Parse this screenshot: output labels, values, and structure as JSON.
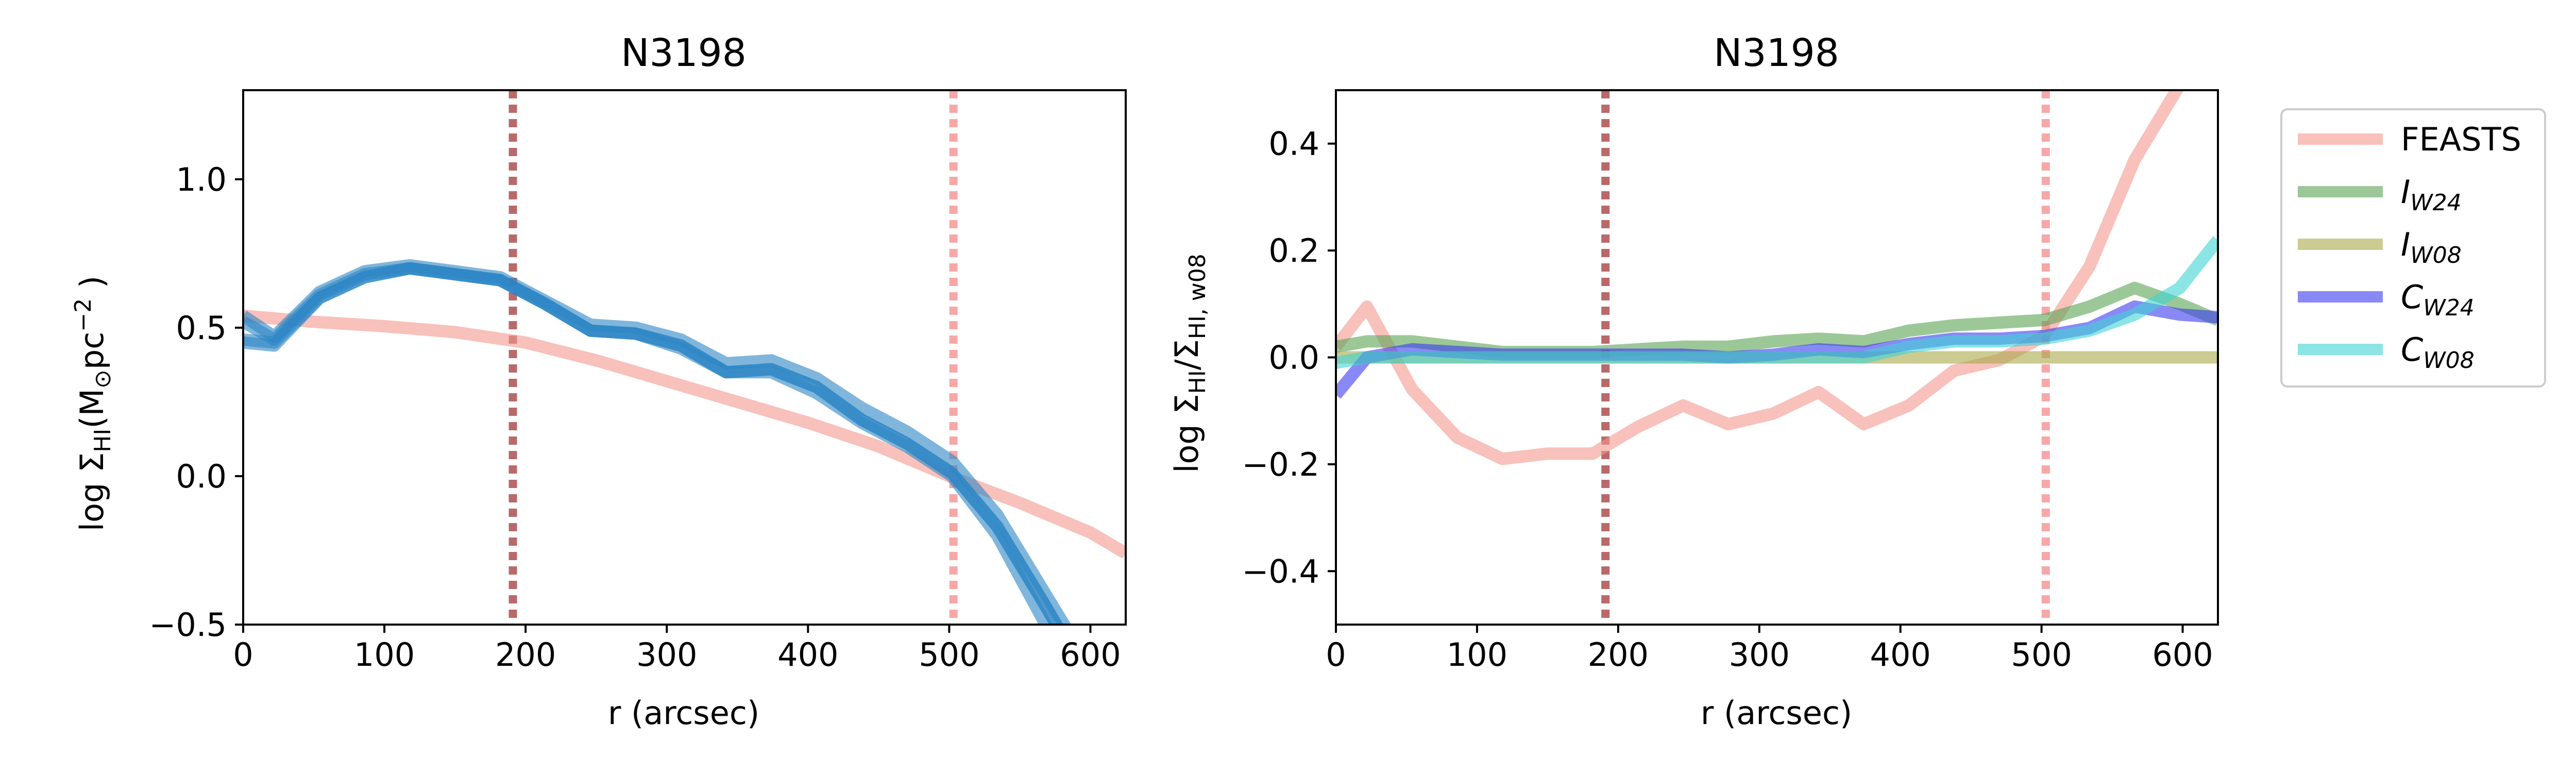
{
  "colors": {
    "FEASTS": "#f4978e",
    "I_W24": "#5aa454",
    "I_W08": "#a8a84a",
    "C_W24": "#3b3bf0",
    "C_W08": "#3fd3d3",
    "vline_dark": "#b86a6a",
    "vline_light": "#f6a8a8",
    "profile_core": "#2b86c4"
  },
  "legend": {
    "entries": [
      {
        "key": "FEASTS",
        "text": "FEASTS"
      },
      {
        "key": "I_W24",
        "base": "I",
        "sub": "W24"
      },
      {
        "key": "I_W08",
        "base": "I",
        "sub": "W08"
      },
      {
        "key": "C_W24",
        "base": "C",
        "sub": "W24"
      },
      {
        "key": "C_W08",
        "base": "C",
        "sub": "W08"
      }
    ]
  },
  "chart_data": [
    {
      "type": "line",
      "title": "N3198",
      "xlabel": "r (arcsec)",
      "ylabel": {
        "pre": "log Σ",
        "sub": "HI",
        "mid": "(M",
        "sun": "⊙",
        "post": "pc",
        "sup": "−2",
        "end": " )"
      },
      "xlim": [
        0,
        625
      ],
      "ylim": [
        -0.5,
        1.3
      ],
      "xticks": [
        0,
        100,
        200,
        300,
        400,
        500,
        600
      ],
      "xticklabels": [
        "0",
        "100",
        "200",
        "300",
        "400",
        "500",
        "600"
      ],
      "yticks": [
        -0.5,
        0.0,
        0.5,
        1.0
      ],
      "yticklabels": [
        "−0.5",
        "0.0",
        "0.5",
        "1.0"
      ],
      "vlines": [
        {
          "x": 191,
          "style": "dark"
        },
        {
          "x": 503,
          "style": "light"
        }
      ],
      "series": [
        {
          "key": "FEASTS",
          "x": [
            0,
            50,
            100,
            150,
            200,
            250,
            300,
            350,
            400,
            450,
            500,
            550,
            600,
            625
          ],
          "y": [
            0.54,
            0.52,
            0.505,
            0.485,
            0.45,
            0.39,
            0.32,
            0.25,
            0.18,
            0.1,
            0.0,
            -0.09,
            -0.19,
            -0.26
          ]
        },
        {
          "key": "I_W24",
          "x": [
            0,
            22,
            54,
            86,
            118,
            150,
            182,
            214,
            246,
            278,
            310,
            342,
            374,
            406,
            438,
            470,
            502,
            534,
            566,
            598
          ],
          "y": [
            0.54,
            0.47,
            0.62,
            0.69,
            0.71,
            0.69,
            0.67,
            0.59,
            0.51,
            0.5,
            0.46,
            0.38,
            0.39,
            0.33,
            0.23,
            0.15,
            0.05,
            -0.13,
            -0.38,
            -0.63
          ]
        },
        {
          "key": "I_W08",
          "x": [
            0,
            22,
            54,
            86,
            118,
            150,
            182,
            214,
            246,
            278,
            310,
            342,
            374,
            406,
            438,
            470,
            502,
            534,
            566,
            598
          ],
          "y": [
            0.52,
            0.46,
            0.61,
            0.68,
            0.7,
            0.68,
            0.66,
            0.58,
            0.49,
            0.48,
            0.43,
            0.35,
            0.35,
            0.28,
            0.18,
            0.1,
            0.0,
            -0.2,
            -0.48,
            -0.78
          ]
        },
        {
          "key": "C_W24",
          "x": [
            0,
            22,
            54,
            86,
            118,
            150,
            182,
            214,
            246,
            278,
            310,
            342,
            374,
            406,
            438,
            470,
            502,
            534,
            566,
            598
          ],
          "y": [
            0.45,
            0.44,
            0.6,
            0.67,
            0.7,
            0.68,
            0.66,
            0.58,
            0.49,
            0.48,
            0.44,
            0.35,
            0.36,
            0.3,
            0.19,
            0.11,
            0.01,
            -0.17,
            -0.42,
            -0.68
          ]
        },
        {
          "key": "C_W08",
          "x": [
            0,
            22,
            54,
            86,
            118,
            150,
            182,
            214,
            246,
            278,
            310,
            342,
            374,
            406,
            438,
            470,
            502,
            534,
            566,
            598
          ],
          "y": [
            0.46,
            0.45,
            0.6,
            0.67,
            0.7,
            0.68,
            0.66,
            0.58,
            0.49,
            0.48,
            0.44,
            0.35,
            0.36,
            0.3,
            0.19,
            0.11,
            0.01,
            -0.17,
            -0.42,
            -0.68
          ]
        }
      ]
    },
    {
      "type": "line",
      "title": "N3198",
      "xlabel": "r (arcsec)",
      "ylabel": {
        "pre": "log Σ",
        "sub": "HI",
        "mid": "/Σ",
        "sub2": "HI, w08"
      },
      "xlim": [
        0,
        625
      ],
      "ylim": [
        -0.5,
        0.5
      ],
      "xticks": [
        0,
        100,
        200,
        300,
        400,
        500,
        600
      ],
      "xticklabels": [
        "0",
        "100",
        "200",
        "300",
        "400",
        "500",
        "600"
      ],
      "yticks": [
        -0.4,
        -0.2,
        0.0,
        0.2,
        0.4
      ],
      "yticklabels": [
        "−0.4",
        "−0.2",
        "0.0",
        "0.2",
        "0.4"
      ],
      "vlines": [
        {
          "x": 191,
          "style": "dark"
        },
        {
          "x": 503,
          "style": "light"
        }
      ],
      "series": [
        {
          "key": "FEASTS",
          "x": [
            0,
            22,
            54,
            86,
            118,
            150,
            182,
            214,
            246,
            278,
            310,
            342,
            374,
            406,
            438,
            470,
            502,
            534,
            566,
            598,
            625
          ],
          "y": [
            0.02,
            0.095,
            -0.06,
            -0.15,
            -0.19,
            -0.18,
            -0.18,
            -0.13,
            -0.09,
            -0.125,
            -0.105,
            -0.065,
            -0.125,
            -0.09,
            -0.025,
            -0.005,
            0.04,
            0.17,
            0.37,
            0.51,
            0.6
          ]
        },
        {
          "key": "I_W24",
          "x": [
            0,
            22,
            54,
            86,
            118,
            150,
            182,
            214,
            246,
            278,
            310,
            342,
            374,
            406,
            438,
            470,
            502,
            534,
            566,
            598,
            625
          ],
          "y": [
            0.02,
            0.03,
            0.03,
            0.02,
            0.01,
            0.01,
            0.01,
            0.015,
            0.02,
            0.02,
            0.03,
            0.035,
            0.03,
            0.05,
            0.06,
            0.065,
            0.07,
            0.095,
            0.13,
            0.1,
            0.07
          ]
        },
        {
          "key": "I_W08",
          "x": [
            0,
            625
          ],
          "y": [
            0.0,
            0.0
          ]
        },
        {
          "key": "C_W24",
          "x": [
            0,
            22,
            54,
            86,
            118,
            150,
            182,
            214,
            246,
            278,
            310,
            342,
            374,
            406,
            438,
            470,
            502,
            534,
            566,
            598,
            625
          ],
          "y": [
            -0.07,
            0.0,
            0.015,
            0.01,
            0.005,
            0.005,
            0.005,
            0.005,
            0.005,
            0.0,
            0.005,
            0.015,
            0.01,
            0.025,
            0.035,
            0.035,
            0.04,
            0.055,
            0.095,
            0.08,
            0.075
          ]
        },
        {
          "key": "C_W08",
          "x": [
            0,
            22,
            54,
            86,
            118,
            150,
            182,
            214,
            246,
            278,
            310,
            342,
            374,
            406,
            438,
            470,
            502,
            534,
            566,
            598,
            625
          ],
          "y": [
            -0.01,
            0.0,
            0.0,
            0.0,
            0.0,
            0.0,
            0.0,
            0.0,
            0.0,
            0.0,
            0.0,
            0.0,
            0.0,
            0.02,
            0.03,
            0.03,
            0.035,
            0.05,
            0.08,
            0.13,
            0.22
          ]
        }
      ]
    }
  ]
}
